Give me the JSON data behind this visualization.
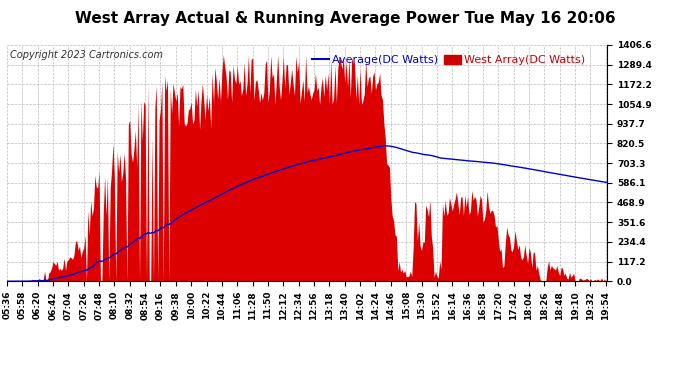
{
  "title": "West Array Actual & Running Average Power Tue May 16 20:06",
  "copyright": "Copyright 2023 Cartronics.com",
  "legend_avg": "Average(DC Watts)",
  "legend_west": "West Array(DC Watts)",
  "ylabel_values": [
    0.0,
    117.2,
    234.4,
    351.6,
    468.9,
    586.1,
    703.3,
    820.5,
    937.7,
    1054.9,
    1172.2,
    1289.4,
    1406.6
  ],
  "ymax": 1406.6,
  "ymin": 0.0,
  "fill_color": "#dd0000",
  "avg_color": "#0000cc",
  "west_color": "#cc0000",
  "background_color": "#ffffff",
  "title_color": "#000000",
  "copyright_color": "#000000",
  "grid_color": "#bbbbbb",
  "title_fontsize": 11,
  "tick_fontsize": 6.5,
  "label_fontsize": 8,
  "copyright_fontsize": 7
}
